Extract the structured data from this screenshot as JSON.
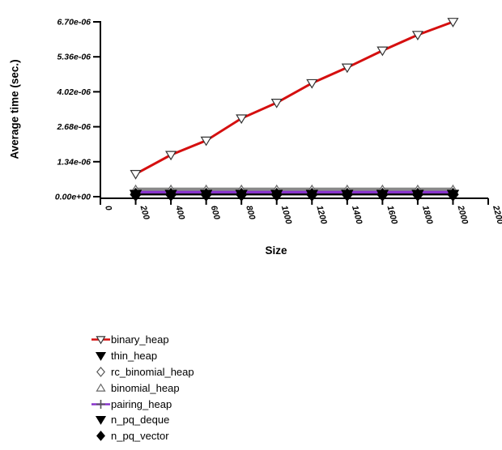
{
  "figure": {
    "background": "#ffffff"
  },
  "chart_data": {
    "type": "line",
    "title": "",
    "xlabel": "Size",
    "ylabel": "Average time (sec.)",
    "xlim": [
      0,
      2200
    ],
    "ylim": [
      0,
      6.7e-06
    ],
    "grid": false,
    "legend_position": "bottom-left",
    "x": [
      200,
      400,
      600,
      800,
      1000,
      1200,
      1400,
      1600,
      1800,
      2000
    ],
    "x_ticks": {
      "values": [
        0,
        200,
        400,
        600,
        800,
        1000,
        1200,
        1400,
        1600,
        1800,
        2000,
        2200
      ],
      "labels": [
        "0",
        "200",
        "400",
        "600",
        "800",
        "1000",
        "1200",
        "1400",
        "1600",
        "1800",
        "2000",
        "2200"
      ]
    },
    "y_ticks": {
      "values": [
        0,
        1.34e-06,
        2.68e-06,
        4.02e-06,
        5.36e-06,
        6.7e-06
      ],
      "labels": [
        "0.00e+00",
        "1.34e-06",
        "2.68e-06",
        "4.02e-06",
        "5.36e-06",
        "6.70e-06"
      ]
    },
    "series": [
      {
        "name": "binary_heap",
        "line_color": "#d50f0f",
        "line_width": 3,
        "line_dash": null,
        "marker": "open-triangle-down",
        "marker_stroke": "#333333",
        "marker_fill": "#ffffff",
        "values": [
          8.7e-07,
          1.6e-06,
          2.15e-06,
          3e-06,
          3.6e-06,
          4.35e-06,
          4.95e-06,
          5.6e-06,
          6.2e-06,
          6.7e-06
        ]
      },
      {
        "name": "thin_heap",
        "line_color": "#111111",
        "line_width": 2,
        "line_dash": null,
        "marker": "filled-triangle-down",
        "marker_stroke": "#000000",
        "marker_fill": "#000000",
        "values": [
          1e-07,
          1e-07,
          1e-07,
          1e-07,
          1e-07,
          1e-07,
          1e-07,
          1e-07,
          1e-07,
          1e-07
        ]
      },
      {
        "name": "rc_binomial_heap",
        "line_color": "#ffffff",
        "line_width": 1.6,
        "line_dash": "5,4",
        "marker": "open-diamond",
        "marker_stroke": "#555555",
        "marker_fill": "#ffffff",
        "values": [
          2.1e-07,
          2.1e-07,
          2.1e-07,
          2.1e-07,
          2.1e-07,
          2.1e-07,
          2.1e-07,
          2.1e-07,
          2.1e-07,
          2.1e-07
        ]
      },
      {
        "name": "binomial_heap",
        "line_color": "#8a8a8a",
        "line_width": 5,
        "line_dash": null,
        "marker": "open-triangle-up",
        "marker_stroke": "#666666",
        "marker_fill": "#ffffff",
        "values": [
          2.7e-07,
          2.7e-07,
          2.7e-07,
          2.7e-07,
          2.7e-07,
          2.7e-07,
          2.7e-07,
          2.7e-07,
          2.7e-07,
          2.7e-07
        ]
      },
      {
        "name": "pairing_heap",
        "line_color": "#8833cc",
        "line_width": 3.5,
        "line_dash": null,
        "marker": "plus",
        "marker_stroke": "#555555",
        "marker_fill": "none",
        "values": [
          1.7e-07,
          1.7e-07,
          1.7e-07,
          1.7e-07,
          1.7e-07,
          1.7e-07,
          1.7e-07,
          1.7e-07,
          1.7e-07,
          1.7e-07
        ]
      },
      {
        "name": "n_pq_deque",
        "line_color": "#222222",
        "line_width": 2,
        "line_dash": null,
        "marker": "filled-triangle-down",
        "marker_stroke": "#000000",
        "marker_fill": "#000000",
        "values": [
          9e-08,
          9e-08,
          9e-08,
          9e-08,
          9e-08,
          9e-08,
          9e-08,
          9e-08,
          9e-08,
          9e-08
        ]
      },
      {
        "name": "n_pq_vector",
        "line_color": "#000000",
        "line_width": 2,
        "line_dash": null,
        "marker": "filled-diamond",
        "marker_stroke": "#000000",
        "marker_fill": "#000000",
        "values": [
          8e-08,
          8e-08,
          8e-08,
          8e-08,
          8e-08,
          8e-08,
          8e-08,
          8e-08,
          8e-08,
          8e-08
        ]
      }
    ]
  }
}
